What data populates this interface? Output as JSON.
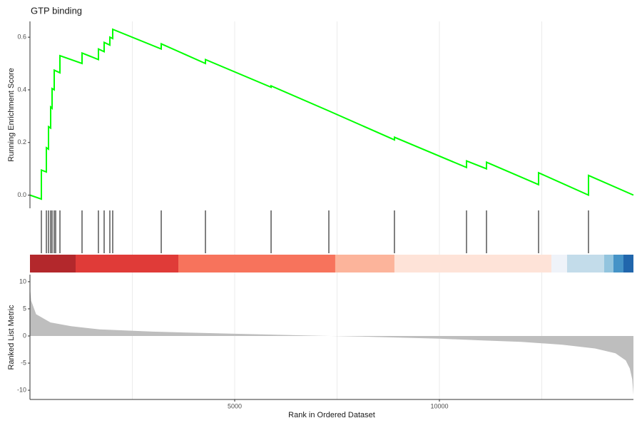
{
  "chart_data": [
    {
      "type": "line",
      "title": "GTP binding",
      "y_label": "Running Enrichment Score",
      "color": "#00ff00",
      "x": [
        0,
        279,
        279,
        401,
        401,
        453,
        453,
        505,
        505,
        540,
        540,
        592,
        592,
        732,
        732,
        1272,
        1272,
        1672,
        1672,
        1812,
        1812,
        1951,
        1951,
        2021,
        2021,
        3206,
        3206,
        4286,
        4286,
        5889,
        5889,
        7300,
        8902,
        8902,
        10662,
        10662,
        11150,
        11150,
        12422,
        12422,
        13641,
        13641,
        14739
      ],
      "y": [
        0,
        -0.015,
        0.095,
        0.088,
        0.18,
        0.175,
        0.26,
        0.255,
        0.335,
        0.33,
        0.405,
        0.4,
        0.475,
        0.465,
        0.53,
        0.5,
        0.54,
        0.515,
        0.555,
        0.545,
        0.58,
        0.57,
        0.6,
        0.595,
        0.63,
        0.555,
        0.575,
        0.5,
        0.515,
        0.41,
        0.415,
        0.32,
        0.21,
        0.22,
        0.105,
        0.13,
        0.1,
        0.125,
        0.04,
        0.085,
        0,
        0.075,
        0
      ],
      "xlim": [
        0,
        14739
      ],
      "ylim": [
        -0.05,
        0.66
      ],
      "yticks": [
        {
          "value": 0,
          "label": "0.0"
        },
        0.2,
        0.4,
        0.6
      ]
    },
    {
      "type": "rug",
      "xlim": [
        0,
        14739
      ],
      "line_color": "#000000",
      "hits": [
        279,
        401,
        453,
        505,
        540,
        592,
        627,
        732,
        1272,
        1672,
        1812,
        1951,
        2021,
        3206,
        4286,
        5889,
        7300,
        8902,
        10662,
        11150,
        12422,
        13641
      ],
      "band_edges": [
        0,
        1115,
        3624,
        7456,
        8902,
        12735,
        13118,
        14024,
        14251,
        14495,
        14739
      ],
      "band_colors": [
        "#b3282c",
        "#e03b38",
        "#f7735c",
        "#fcb49b",
        "#fee3d8",
        "#eff3f9",
        "#c3dcea",
        "#92c4de",
        "#4593c7",
        "#2166ac"
      ]
    },
    {
      "type": "area",
      "x_label": "Rank in Ordered Dataset",
      "y_label": "Ranked List Metric",
      "color": "#bebebe",
      "x": [
        0,
        30,
        150,
        500,
        1000,
        1700,
        3000,
        5000,
        7000,
        8000,
        9000,
        10000,
        11000,
        12000,
        13000,
        13800,
        14300,
        14550,
        14650,
        14710,
        14739
      ],
      "y": [
        9,
        6.5,
        4,
        2.5,
        1.8,
        1.2,
        0.8,
        0.4,
        0.05,
        -0.1,
        -0.3,
        -0.5,
        -0.8,
        -1.1,
        -1.6,
        -2.3,
        -3.2,
        -4.5,
        -6,
        -8,
        -10.8
      ],
      "xlim": [
        0,
        14739
      ],
      "ylim": [
        -11.7,
        11.3
      ],
      "xticks": [
        5000,
        10000
      ],
      "xgrid_minor": [
        2500,
        7500,
        12500
      ],
      "yticks": [
        -10,
        -5,
        0,
        5,
        10
      ]
    }
  ]
}
